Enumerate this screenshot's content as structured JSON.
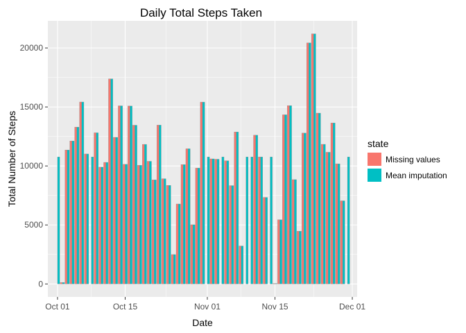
{
  "chart_data": {
    "type": "bar",
    "title": "Daily Total Steps Taken",
    "xlabel": "Date",
    "ylabel": "Total Number of Steps",
    "x_start": "2012-10-01",
    "x_end": "2012-11-30",
    "xlim": [
      "2012-09-29",
      "2012-12-02"
    ],
    "ylim": [
      -1100,
      22300
    ],
    "y_ticks": [
      0,
      5000,
      10000,
      15000,
      20000
    ],
    "x_ticks": [
      {
        "date": "2012-10-01",
        "label": "Oct 01"
      },
      {
        "date": "2012-10-15",
        "label": "Oct 15"
      },
      {
        "date": "2012-11-01",
        "label": "Nov 01"
      },
      {
        "date": "2012-11-15",
        "label": "Nov 15"
      },
      {
        "date": "2012-12-01",
        "label": "Dec 01"
      }
    ],
    "grid": true,
    "legend_position": "right",
    "legend_title": "state",
    "colors": {
      "plot_bg": "#EBEBEB",
      "grid": "#FFFFFF",
      "bar_outline": "#8C8C8C"
    },
    "series": [
      {
        "name": "Missing values",
        "color": "#F8766D",
        "values": [
          null,
          126,
          11352,
          12116,
          13294,
          15420,
          11015,
          null,
          12811,
          9900,
          10304,
          17382,
          12426,
          15098,
          10139,
          15084,
          13452,
          10056,
          11829,
          10395,
          8821,
          13460,
          8918,
          8355,
          2492,
          6778,
          10119,
          11458,
          5018,
          9819,
          15414,
          null,
          10600,
          10571,
          null,
          10439,
          8334,
          12883,
          3219,
          null,
          null,
          12608,
          10765,
          7336,
          null,
          41,
          5441,
          14339,
          15110,
          8841,
          4472,
          12787,
          20427,
          21194,
          14478,
          11834,
          11162,
          13646,
          10183,
          7047,
          null
        ]
      },
      {
        "name": "Mean imputation",
        "color": "#00BFC4",
        "values": [
          10766,
          126,
          11352,
          12116,
          13294,
          15420,
          11015,
          10766,
          12811,
          9900,
          10304,
          17382,
          12426,
          15098,
          10139,
          15084,
          13452,
          10056,
          11829,
          10395,
          8821,
          13460,
          8918,
          8355,
          2492,
          6778,
          10119,
          11458,
          5018,
          9819,
          15414,
          10766,
          10600,
          10571,
          10766,
          10439,
          8334,
          12883,
          3219,
          10766,
          10766,
          12608,
          10765,
          7336,
          10766,
          41,
          5441,
          14339,
          15110,
          8841,
          4472,
          12787,
          20427,
          21194,
          14478,
          11834,
          11162,
          13646,
          10183,
          7047,
          10766
        ]
      }
    ]
  }
}
